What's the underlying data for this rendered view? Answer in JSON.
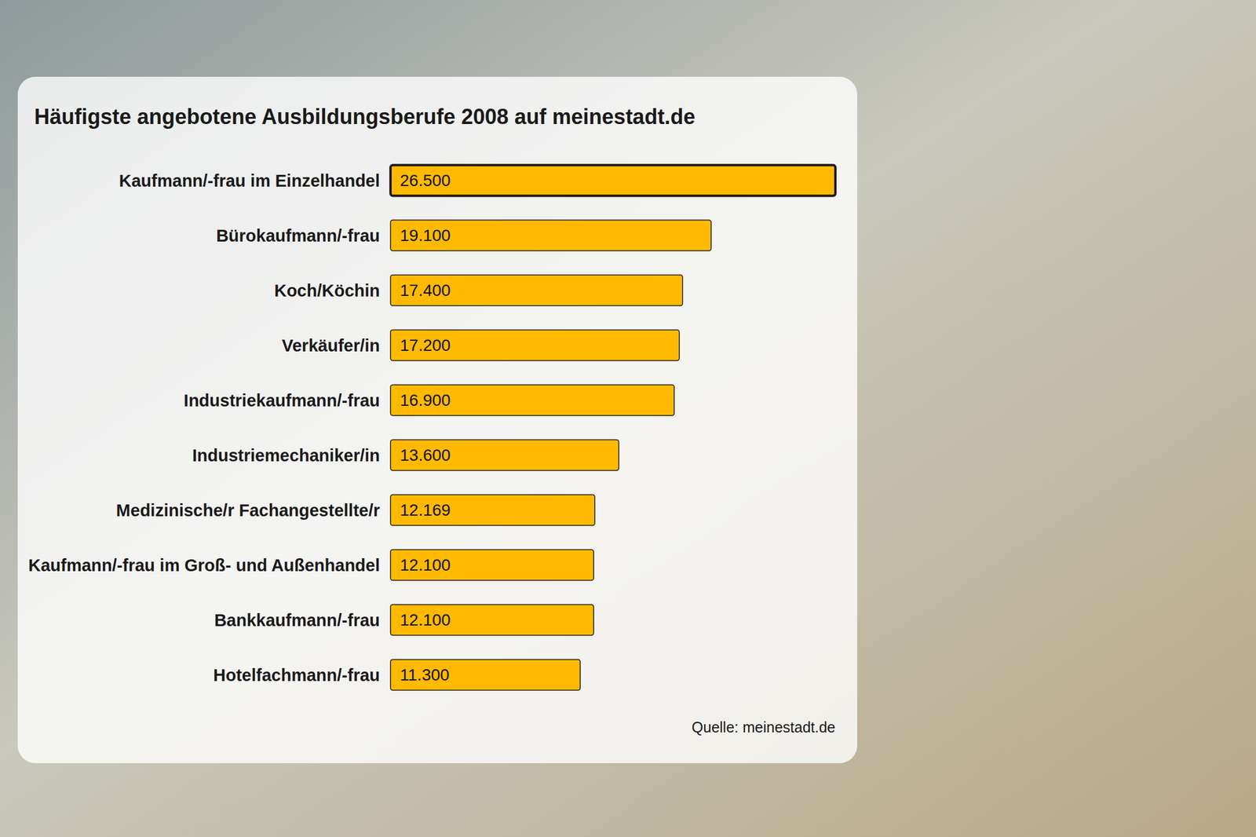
{
  "chart_data": {
    "type": "bar",
    "orientation": "horizontal",
    "title": "Häufigste angebotene Ausbildungsberufe 2008 auf meinestadt.de",
    "categories": [
      "Kaufmann/-frau im Einzelhandel",
      "Bürokaufmann/-frau",
      "Koch/Köchin",
      "Verkäufer/in",
      "Industriekaufmann/-frau",
      "Industriemechaniker/in",
      "Medizinische/r Fachangestellte/r",
      "Kaufmann/-frau im Groß- und Außenhandel",
      "Bankkaufmann/-frau",
      "Hotelfachmann/-frau"
    ],
    "values": [
      26500,
      19100,
      17400,
      17200,
      16900,
      13600,
      12169,
      12100,
      12100,
      11300
    ],
    "value_labels": [
      "26.500",
      "19.100",
      "17.400",
      "17.200",
      "16.900",
      "13.600",
      "12.169",
      "12.100",
      "12.100",
      "11.300"
    ],
    "color": "#ffba00",
    "xlim": [
      0,
      26500
    ],
    "data_labels": true,
    "tick_labels": false,
    "grid": false,
    "source": "Quelle: meinestadt.de"
  }
}
